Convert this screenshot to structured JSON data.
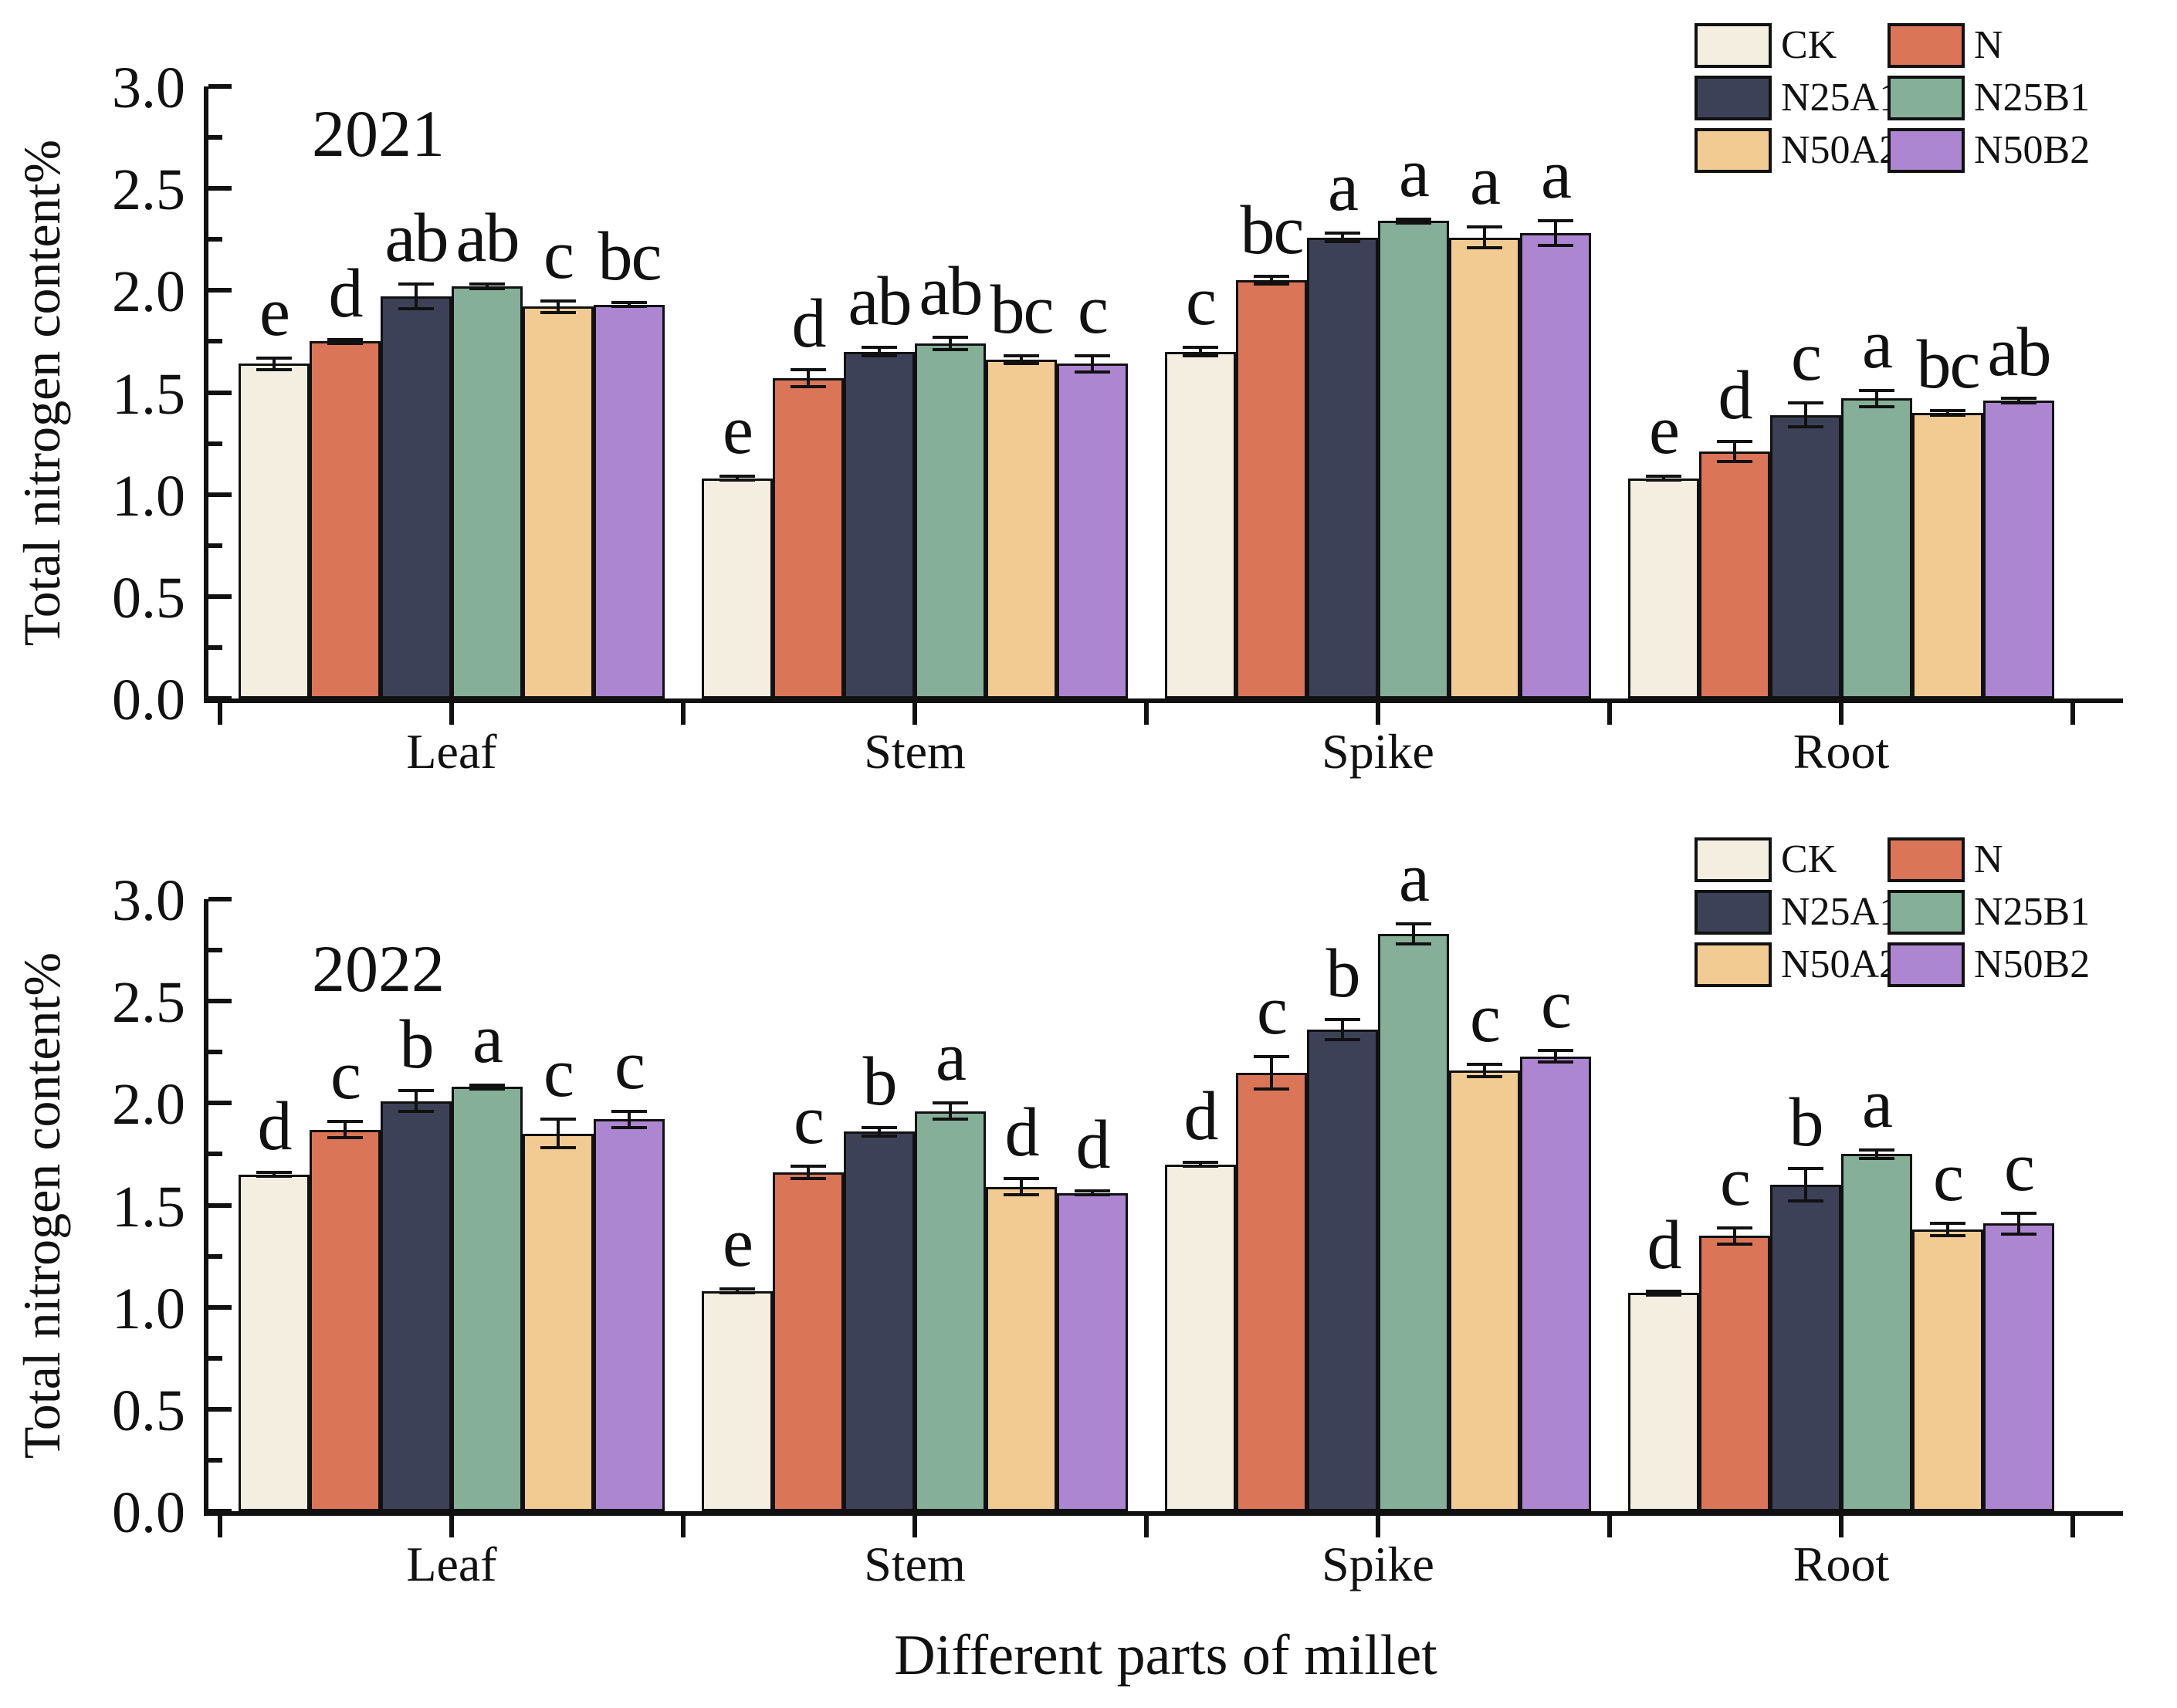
{
  "figure": {
    "x_axis_title": "Different parts of millet",
    "y_axis_label": "Total nitrogen content%",
    "y_tick_labels": [
      "3.0",
      "2.5",
      "2.0",
      "1.5",
      "1.0",
      "0.5",
      "0.0"
    ],
    "axis_color": "#111111",
    "background_color": "#ffffff"
  },
  "chart_data": [
    {
      "type": "bar",
      "year_label": "2021",
      "ylabel": "Total nitrogen content%",
      "ylim": [
        0,
        3.0
      ],
      "y_major_step": 0.5,
      "grid": false,
      "legend_position": "top-right",
      "categories": [
        "Leaf",
        "Stem",
        "Spike",
        "Root"
      ],
      "series": [
        {
          "name": "CK",
          "color": "#f3eee0",
          "values": [
            1.64,
            1.08,
            1.7,
            1.08
          ],
          "errors": [
            0.03,
            0.01,
            0.02,
            0.01
          ],
          "sig_letters": [
            "e",
            "e",
            "c",
            "e"
          ]
        },
        {
          "name": "N",
          "color": "#db7558",
          "values": [
            1.75,
            1.57,
            2.05,
            1.21
          ],
          "errors": [
            0.01,
            0.04,
            0.02,
            0.05
          ],
          "sig_letters": [
            "d",
            "d",
            "bc",
            "d"
          ]
        },
        {
          "name": "N25A1",
          "color": "#3d4158",
          "values": [
            1.97,
            1.7,
            2.26,
            1.39
          ],
          "errors": [
            0.06,
            0.02,
            0.02,
            0.06
          ],
          "sig_letters": [
            "ab",
            "ab",
            "a",
            "c"
          ]
        },
        {
          "name": "N25B1",
          "color": "#85af99",
          "values": [
            2.02,
            1.74,
            2.34,
            1.47
          ],
          "errors": [
            0.01,
            0.03,
            0.01,
            0.04
          ],
          "sig_letters": [
            "ab",
            "ab",
            "a",
            "a"
          ]
        },
        {
          "name": "N50A2",
          "color": "#f2cb92",
          "values": [
            1.92,
            1.66,
            2.26,
            1.4
          ],
          "errors": [
            0.03,
            0.02,
            0.05,
            0.01
          ],
          "sig_letters": [
            "c",
            "bc",
            "a",
            "bc"
          ]
        },
        {
          "name": "N50B2",
          "color": "#ad86d2",
          "values": [
            1.93,
            1.64,
            2.28,
            1.46
          ],
          "errors": [
            0.01,
            0.04,
            0.06,
            0.01
          ],
          "sig_letters": [
            "bc",
            "c",
            "a",
            "ab"
          ]
        }
      ]
    },
    {
      "type": "bar",
      "year_label": "2022",
      "ylabel": "Total nitrogen content%",
      "ylim": [
        0,
        3.0
      ],
      "y_major_step": 0.5,
      "grid": false,
      "legend_position": "top-right",
      "categories": [
        "Leaf",
        "Stem",
        "Spike",
        "Root"
      ],
      "series": [
        {
          "name": "CK",
          "color": "#f3eee0",
          "values": [
            1.65,
            1.08,
            1.7,
            1.07
          ],
          "errors": [
            0.01,
            0.01,
            0.01,
            0.01
          ],
          "sig_letters": [
            "d",
            "e",
            "d",
            "d"
          ]
        },
        {
          "name": "N",
          "color": "#db7558",
          "values": [
            1.87,
            1.66,
            2.15,
            1.35
          ],
          "errors": [
            0.04,
            0.03,
            0.08,
            0.04
          ],
          "sig_letters": [
            "c",
            "c",
            "c",
            "c"
          ]
        },
        {
          "name": "N25A1",
          "color": "#3d4158",
          "values": [
            2.01,
            1.86,
            2.36,
            1.6
          ],
          "errors": [
            0.05,
            0.02,
            0.05,
            0.08
          ],
          "sig_letters": [
            "b",
            "b",
            "b",
            "b"
          ]
        },
        {
          "name": "N25B1",
          "color": "#85af99",
          "values": [
            2.08,
            1.96,
            2.83,
            1.75
          ],
          "errors": [
            0.01,
            0.04,
            0.05,
            0.02
          ],
          "sig_letters": [
            "a",
            "a",
            "a",
            "a"
          ]
        },
        {
          "name": "N50A2",
          "color": "#f2cb92",
          "values": [
            1.85,
            1.59,
            2.16,
            1.38
          ],
          "errors": [
            0.07,
            0.04,
            0.03,
            0.03
          ],
          "sig_letters": [
            "c",
            "d",
            "c",
            "c"
          ]
        },
        {
          "name": "N50B2",
          "color": "#ad86d2",
          "values": [
            1.92,
            1.56,
            2.23,
            1.41
          ],
          "errors": [
            0.04,
            0.01,
            0.03,
            0.05
          ],
          "sig_letters": [
            "c",
            "d",
            "c",
            "c"
          ]
        }
      ]
    }
  ]
}
